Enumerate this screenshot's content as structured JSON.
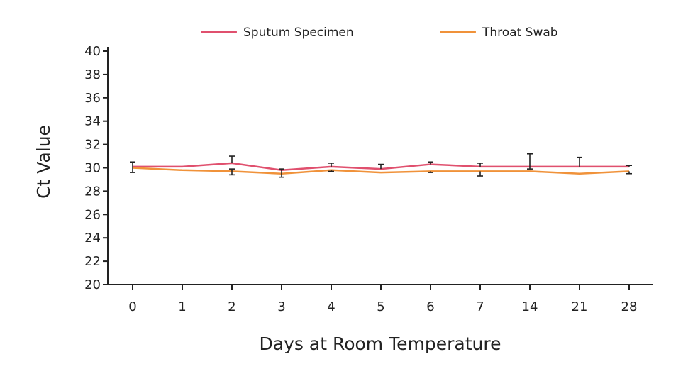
{
  "chart_data": {
    "type": "line",
    "xlabel": "Days at Room Temperature",
    "ylabel": "Ct Value",
    "categories": [
      "0",
      "1",
      "2",
      "3",
      "4",
      "5",
      "6",
      "7",
      "14",
      "21",
      "28"
    ],
    "ylim": [
      20,
      40
    ],
    "yticks": [
      "20",
      "22",
      "24",
      "26",
      "28",
      "30",
      "32",
      "34",
      "36",
      "38",
      "40"
    ],
    "legend_position": "top",
    "series": [
      {
        "name": "Sputum Specimen",
        "color": "#e0506e",
        "values": [
          30.1,
          30.1,
          30.4,
          29.8,
          30.1,
          29.9,
          30.3,
          30.1,
          30.1,
          30.1,
          30.1
        ],
        "error_high": [
          30.5,
          null,
          31.0,
          null,
          30.4,
          30.3,
          30.5,
          30.4,
          31.2,
          30.9,
          30.2
        ],
        "error_low": [
          29.6,
          null,
          null,
          null,
          null,
          null,
          null,
          null,
          29.9,
          30.1,
          null
        ]
      },
      {
        "name": "Throat Swab",
        "color": "#f0923a",
        "values": [
          30.0,
          29.8,
          29.7,
          29.5,
          29.8,
          29.6,
          29.7,
          29.7,
          29.7,
          29.5,
          29.7
        ],
        "error_high": [
          null,
          null,
          29.9,
          29.9,
          null,
          null,
          null,
          null,
          null,
          null,
          null
        ],
        "error_low": [
          null,
          null,
          29.4,
          29.2,
          29.7,
          null,
          29.6,
          29.3,
          null,
          null,
          29.5
        ]
      }
    ]
  }
}
